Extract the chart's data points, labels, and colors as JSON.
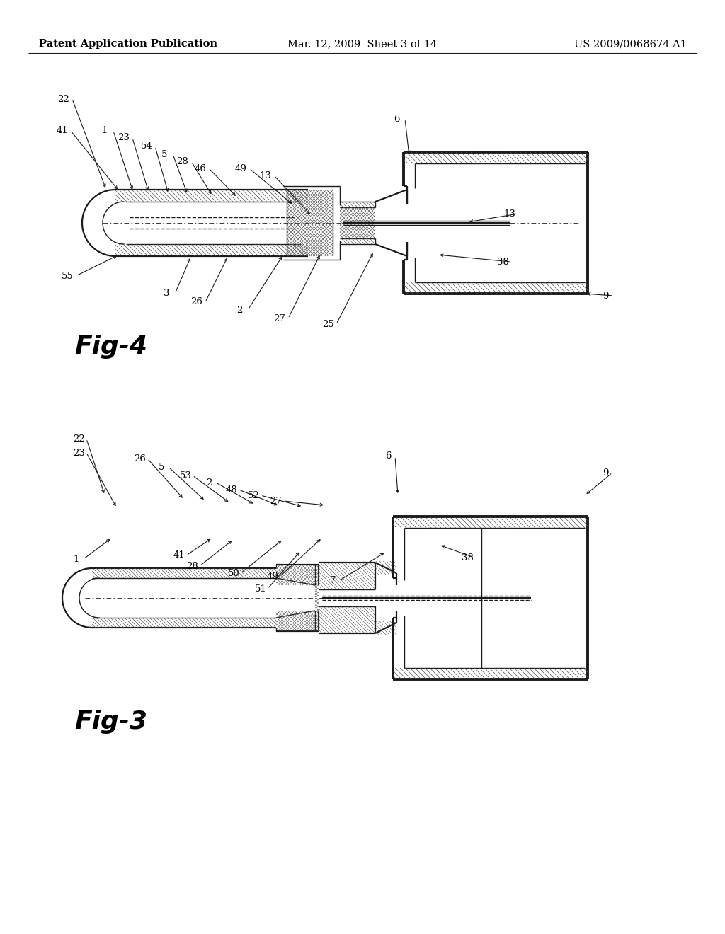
{
  "background_color": "#ffffff",
  "page_width": 10.24,
  "page_height": 13.2,
  "header_text": "Patent Application Publication",
  "header_date": "Mar. 12, 2009  Sheet 3 of 14",
  "header_number": "US 2009/0068674 A1",
  "fig4_label": "Fig-4",
  "fig3_label": "Fig-3",
  "line_color": "#1a1a1a",
  "text_color": "#000000",
  "header_fontsize": 10.5,
  "ref_fontsize": 9.5,
  "fig_label_fontsize": 26
}
